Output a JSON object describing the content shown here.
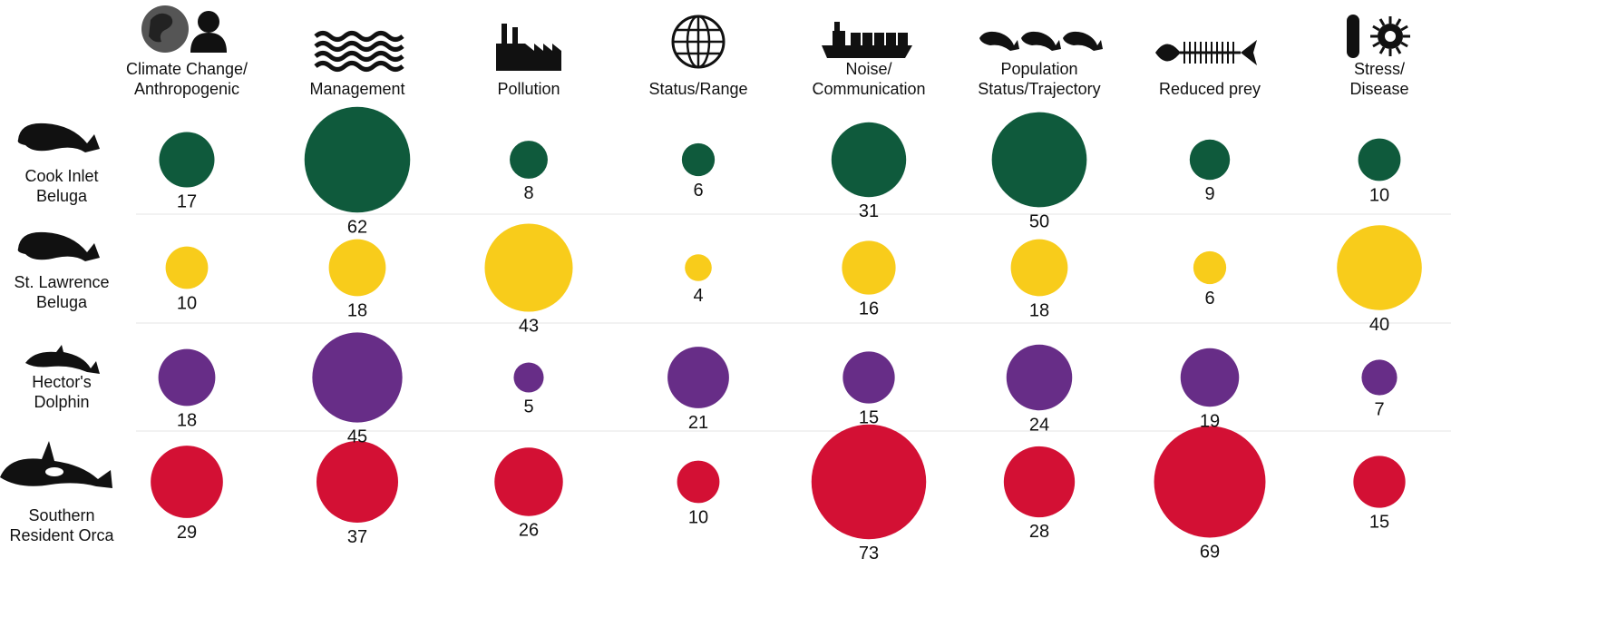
{
  "chart_data": {
    "type": "bubble-matrix",
    "columns": [
      {
        "label_lines": [
          "Climate Change/",
          "Anthropogenic"
        ],
        "icon": "globe-person-icon"
      },
      {
        "label_lines": [
          "Management"
        ],
        "icon": "waves-icon"
      },
      {
        "label_lines": [
          "Pollution"
        ],
        "icon": "factory-icon"
      },
      {
        "label_lines": [
          "Status/Range"
        ],
        "icon": "globe-grid-icon"
      },
      {
        "label_lines": [
          "Noise/",
          "Communication"
        ],
        "icon": "cargo-ship-icon"
      },
      {
        "label_lines": [
          "Population",
          "Status/Trajectory"
        ],
        "icon": "three-whales-icon"
      },
      {
        "label_lines": [
          "Reduced prey"
        ],
        "icon": "fish-skeleton-icon"
      },
      {
        "label_lines": [
          "Stress/",
          "Disease"
        ],
        "icon": "microbe-icon"
      }
    ],
    "series": [
      {
        "label_lines": [
          "Cook Inlet",
          "Beluga"
        ],
        "icon": "beluga-icon",
        "color": "#0f5a3c",
        "values": [
          17,
          62,
          8,
          6,
          31,
          50,
          9,
          10
        ]
      },
      {
        "label_lines": [
          "St. Lawrence",
          "Beluga"
        ],
        "icon": "beluga-icon",
        "color": "#f8cc1b",
        "values": [
          10,
          18,
          43,
          4,
          16,
          18,
          6,
          40
        ]
      },
      {
        "label_lines": [
          "Hector's",
          "Dolphin"
        ],
        "icon": "dolphin-icon",
        "color": "#672d87",
        "values": [
          18,
          45,
          5,
          21,
          15,
          24,
          19,
          7
        ]
      },
      {
        "label_lines": [
          "Southern",
          "Resident Orca"
        ],
        "icon": "orca-icon",
        "color": "#d31034",
        "values": [
          29,
          37,
          26,
          10,
          73,
          28,
          69,
          15
        ]
      }
    ]
  }
}
